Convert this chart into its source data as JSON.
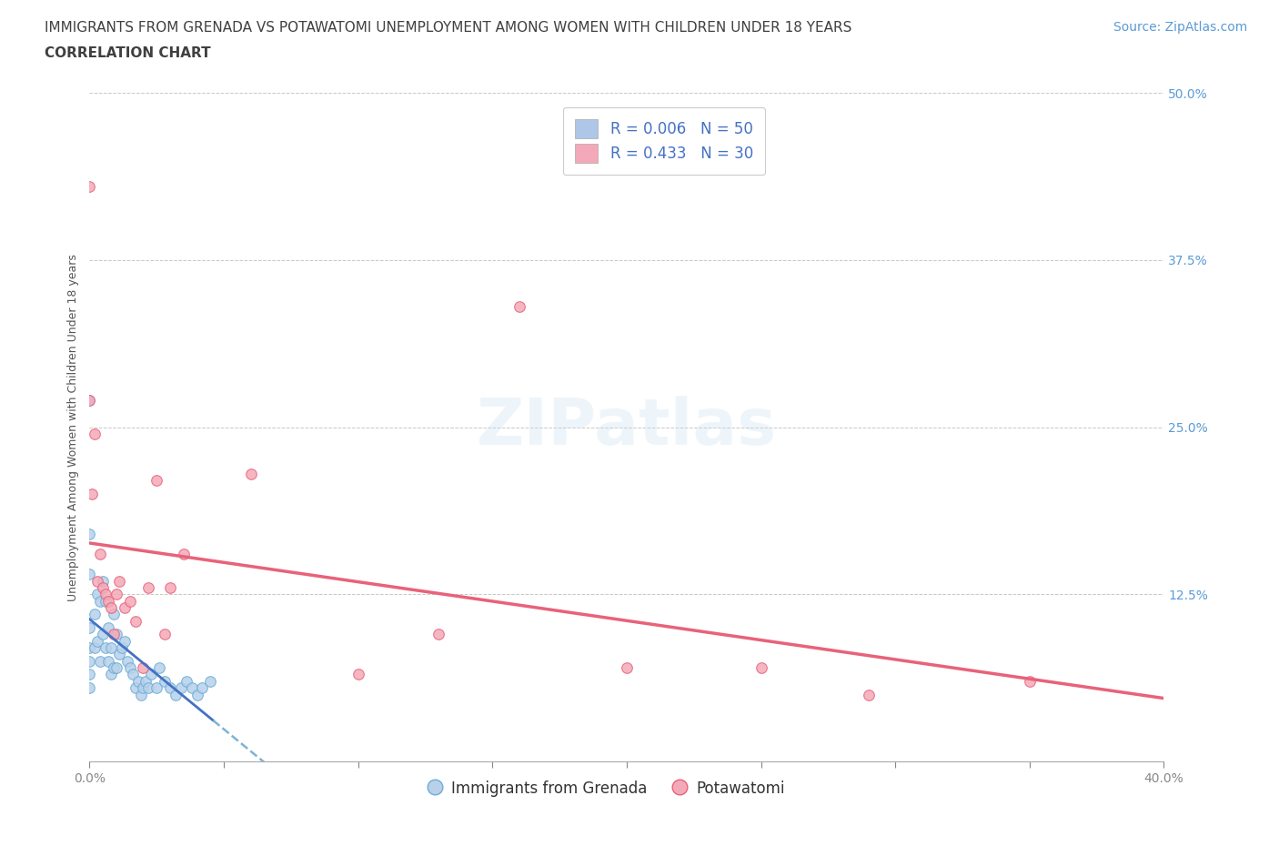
{
  "title_line1": "IMMIGRANTS FROM GRENADA VS POTAWATOMI UNEMPLOYMENT AMONG WOMEN WITH CHILDREN UNDER 18 YEARS",
  "title_line2": "CORRELATION CHART",
  "source_text": "Source: ZipAtlas.com",
  "ylabel": "Unemployment Among Women with Children Under 18 years",
  "xlim": [
    0.0,
    0.4
  ],
  "ylim": [
    0.0,
    0.5
  ],
  "xtick_values": [
    0.0,
    0.05,
    0.1,
    0.15,
    0.2,
    0.25,
    0.3,
    0.35,
    0.4
  ],
  "xtick_label_left": "0.0%",
  "xtick_label_right": "40.0%",
  "ytick_values": [
    0.125,
    0.25,
    0.375,
    0.5
  ],
  "ytick_labels": [
    "12.5%",
    "25.0%",
    "37.5%",
    "50.0%"
  ],
  "grid_color": "#c8c8c8",
  "background_color": "#ffffff",
  "watermark_text": "ZIPatlas",
  "legend_entries": [
    {
      "label": "R = 0.006   N = 50",
      "color": "#aec6e8"
    },
    {
      "label": "R = 0.433   N = 30",
      "color": "#f4a9b8"
    }
  ],
  "series_blue": {
    "name": "Immigrants from Grenada",
    "color": "#b8d0ea",
    "border_color": "#6baed6",
    "trend_color": "#4472c4",
    "trend_color_dashed": "#7fb3d3",
    "x": [
      0.0,
      0.0,
      0.0,
      0.0,
      0.0,
      0.0,
      0.0,
      0.0,
      0.002,
      0.002,
      0.003,
      0.003,
      0.004,
      0.004,
      0.005,
      0.005,
      0.006,
      0.006,
      0.007,
      0.007,
      0.008,
      0.008,
      0.009,
      0.009,
      0.01,
      0.01,
      0.011,
      0.012,
      0.013,
      0.014,
      0.015,
      0.016,
      0.017,
      0.018,
      0.019,
      0.02,
      0.021,
      0.022,
      0.023,
      0.025,
      0.026,
      0.028,
      0.03,
      0.032,
      0.034,
      0.036,
      0.038,
      0.04,
      0.042,
      0.045
    ],
    "y": [
      0.27,
      0.17,
      0.14,
      0.1,
      0.085,
      0.075,
      0.065,
      0.055,
      0.11,
      0.085,
      0.125,
      0.09,
      0.12,
      0.075,
      0.135,
      0.095,
      0.12,
      0.085,
      0.1,
      0.075,
      0.085,
      0.065,
      0.11,
      0.07,
      0.095,
      0.07,
      0.08,
      0.085,
      0.09,
      0.075,
      0.07,
      0.065,
      0.055,
      0.06,
      0.05,
      0.055,
      0.06,
      0.055,
      0.065,
      0.055,
      0.07,
      0.06,
      0.055,
      0.05,
      0.055,
      0.06,
      0.055,
      0.05,
      0.055,
      0.06
    ]
  },
  "series_pink": {
    "name": "Potawatomi",
    "color": "#f4a9b8",
    "border_color": "#e8627a",
    "trend_color": "#e8627a",
    "x": [
      0.0,
      0.0,
      0.001,
      0.002,
      0.003,
      0.004,
      0.005,
      0.006,
      0.007,
      0.008,
      0.009,
      0.01,
      0.011,
      0.013,
      0.015,
      0.017,
      0.02,
      0.022,
      0.025,
      0.028,
      0.03,
      0.035,
      0.06,
      0.1,
      0.13,
      0.16,
      0.2,
      0.25,
      0.29,
      0.35
    ],
    "y": [
      0.43,
      0.27,
      0.2,
      0.245,
      0.135,
      0.155,
      0.13,
      0.125,
      0.12,
      0.115,
      0.095,
      0.125,
      0.135,
      0.115,
      0.12,
      0.105,
      0.07,
      0.13,
      0.21,
      0.095,
      0.13,
      0.155,
      0.215,
      0.065,
      0.095,
      0.34,
      0.07,
      0.07,
      0.05,
      0.06
    ]
  },
  "title_fontsize": 11,
  "subtitle_fontsize": 11,
  "axis_label_fontsize": 9,
  "tick_fontsize": 10,
  "legend_fontsize": 12,
  "source_fontsize": 10,
  "watermark_fontsize": 52,
  "watermark_color": "#c8dff0",
  "watermark_alpha": 0.3
}
